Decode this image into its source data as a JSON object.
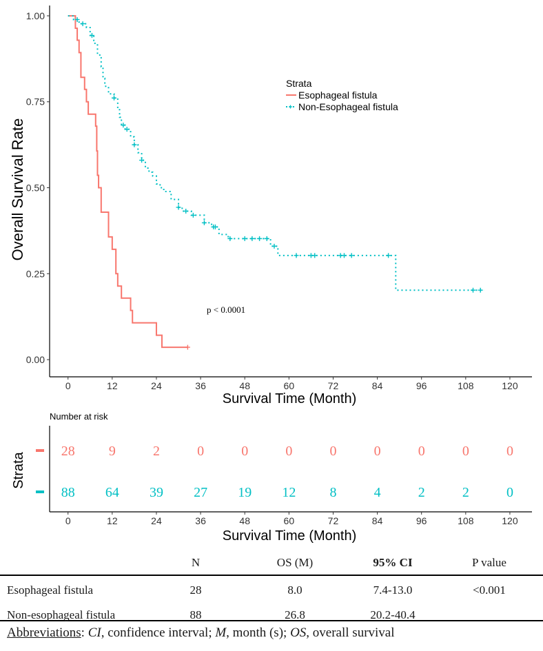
{
  "chart_data": [
    {
      "type": "line",
      "subtype": "kaplan-meier",
      "xlabel": "Survival Time (Month)",
      "ylabel": "Overall Survival Rate",
      "xlim": [
        -5,
        126
      ],
      "ylim": [
        -0.05,
        1.03
      ],
      "x_ticks": [
        0,
        12,
        24,
        36,
        48,
        60,
        72,
        84,
        96,
        108,
        120
      ],
      "y_ticks": [
        0.0,
        0.25,
        0.5,
        0.75,
        1.0
      ],
      "y_tick_labels": [
        "0.00",
        "0.25",
        "0.50",
        "0.75",
        "1.00"
      ],
      "legend_title": "Strata",
      "legend_position": "top-right",
      "annotation": "p < 0.0001",
      "series": [
        {
          "name": "Esophageal fistula",
          "color": "#F8766D",
          "style": "solid",
          "steps": [
            [
              0,
              1.0
            ],
            [
              2.0,
              0.964
            ],
            [
              2.5,
              0.929
            ],
            [
              3.0,
              0.893
            ],
            [
              3.5,
              0.821
            ],
            [
              4.5,
              0.786
            ],
            [
              5.0,
              0.75
            ],
            [
              5.5,
              0.714
            ],
            [
              7.5,
              0.679
            ],
            [
              7.8,
              0.607
            ],
            [
              8.0,
              0.536
            ],
            [
              8.3,
              0.5
            ],
            [
              9.0,
              0.429
            ],
            [
              11.0,
              0.357
            ],
            [
              12.0,
              0.321
            ],
            [
              13.0,
              0.25
            ],
            [
              13.5,
              0.214
            ],
            [
              14.5,
              0.179
            ],
            [
              17.0,
              0.143
            ],
            [
              17.5,
              0.107
            ],
            [
              24.0,
              0.071
            ],
            [
              25.5,
              0.036
            ],
            [
              32.5,
              0.036
            ]
          ],
          "censor_x": [
            32.5
          ]
        },
        {
          "name": "Non-Esophageal fistula",
          "color": "#00BFC4",
          "style": "dotted",
          "steps": [
            [
              0,
              1.0
            ],
            [
              1.5,
              0.989
            ],
            [
              3.0,
              0.977
            ],
            [
              5.0,
              0.966
            ],
            [
              6.0,
              0.943
            ],
            [
              7.0,
              0.92
            ],
            [
              8.0,
              0.886
            ],
            [
              9.0,
              0.852
            ],
            [
              9.5,
              0.818
            ],
            [
              10.0,
              0.795
            ],
            [
              11.0,
              0.773
            ],
            [
              12.5,
              0.761
            ],
            [
              13.5,
              0.727
            ],
            [
              14.0,
              0.705
            ],
            [
              14.5,
              0.682
            ],
            [
              15.5,
              0.67
            ],
            [
              17.0,
              0.648
            ],
            [
              18.0,
              0.625
            ],
            [
              19.0,
              0.602
            ],
            [
              20.0,
              0.58
            ],
            [
              21.0,
              0.557
            ],
            [
              22.0,
              0.545
            ],
            [
              23.0,
              0.534
            ],
            [
              24.0,
              0.511
            ],
            [
              25.0,
              0.5
            ],
            [
              26.0,
              0.489
            ],
            [
              28.0,
              0.466
            ],
            [
              30.0,
              0.443
            ],
            [
              31.0,
              0.432
            ],
            [
              33.5,
              0.42
            ],
            [
              37.0,
              0.398
            ],
            [
              39.0,
              0.386
            ],
            [
              41.0,
              0.364
            ],
            [
              43.5,
              0.352
            ],
            [
              55.0,
              0.33
            ],
            [
              57.0,
              0.303
            ],
            [
              89.0,
              0.303
            ],
            [
              89.0,
              0.202
            ],
            [
              113.0,
              0.202
            ]
          ],
          "censor_x": [
            2.5,
            4.0,
            6.5,
            12.5,
            15.0,
            16.0,
            18.0,
            20.0,
            30.0,
            32.0,
            34.0,
            37.0,
            39.5,
            40.0,
            44.0,
            48.0,
            50.0,
            52.0,
            54.0,
            56.0,
            62.0,
            66.0,
            67.0,
            74.0,
            75.0,
            77.0,
            87.0,
            110.0,
            112.0
          ]
        }
      ]
    },
    {
      "type": "table",
      "title": "Number at risk",
      "xlabel": "Survival Time (Month)",
      "ylabel": "Strata",
      "x_ticks": [
        0,
        12,
        24,
        36,
        48,
        60,
        72,
        84,
        96,
        108,
        120
      ],
      "rows": [
        {
          "name": "Esophageal fistula",
          "color": "#F8766D",
          "values": [
            28,
            9,
            2,
            0,
            0,
            0,
            0,
            0,
            0,
            0,
            0
          ]
        },
        {
          "name": "Non-Esophageal fistula",
          "color": "#00BFC4",
          "values": [
            88,
            64,
            39,
            27,
            19,
            12,
            8,
            4,
            2,
            2,
            0
          ]
        }
      ]
    }
  ],
  "stats_table": {
    "headers": [
      "",
      "N",
      "OS (M)",
      "95% CI",
      "P value"
    ],
    "rows": [
      [
        "Esophageal fistula",
        "28",
        "8.0",
        "7.4-13.0",
        "<0.001"
      ],
      [
        "Non-esophageal fistula",
        "88",
        "26.8",
        "20.2-40.4",
        ""
      ]
    ]
  },
  "abbreviations": {
    "label": "Abbreviations",
    "items": [
      {
        "term": "CI",
        "definition": "confidence interval"
      },
      {
        "term": "M",
        "definition": "month (s)"
      },
      {
        "term": "OS",
        "definition": "overall survival"
      }
    ]
  }
}
